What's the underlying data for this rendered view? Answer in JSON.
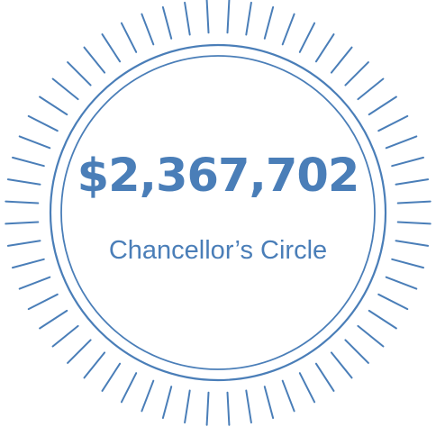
{
  "badge": {
    "amount": "$2,367,702",
    "label": "Chancellor’s Circle"
  },
  "colors": {
    "accent": "#4a7eb8",
    "background": "#ffffff"
  },
  "rays": {
    "count": 60
  }
}
